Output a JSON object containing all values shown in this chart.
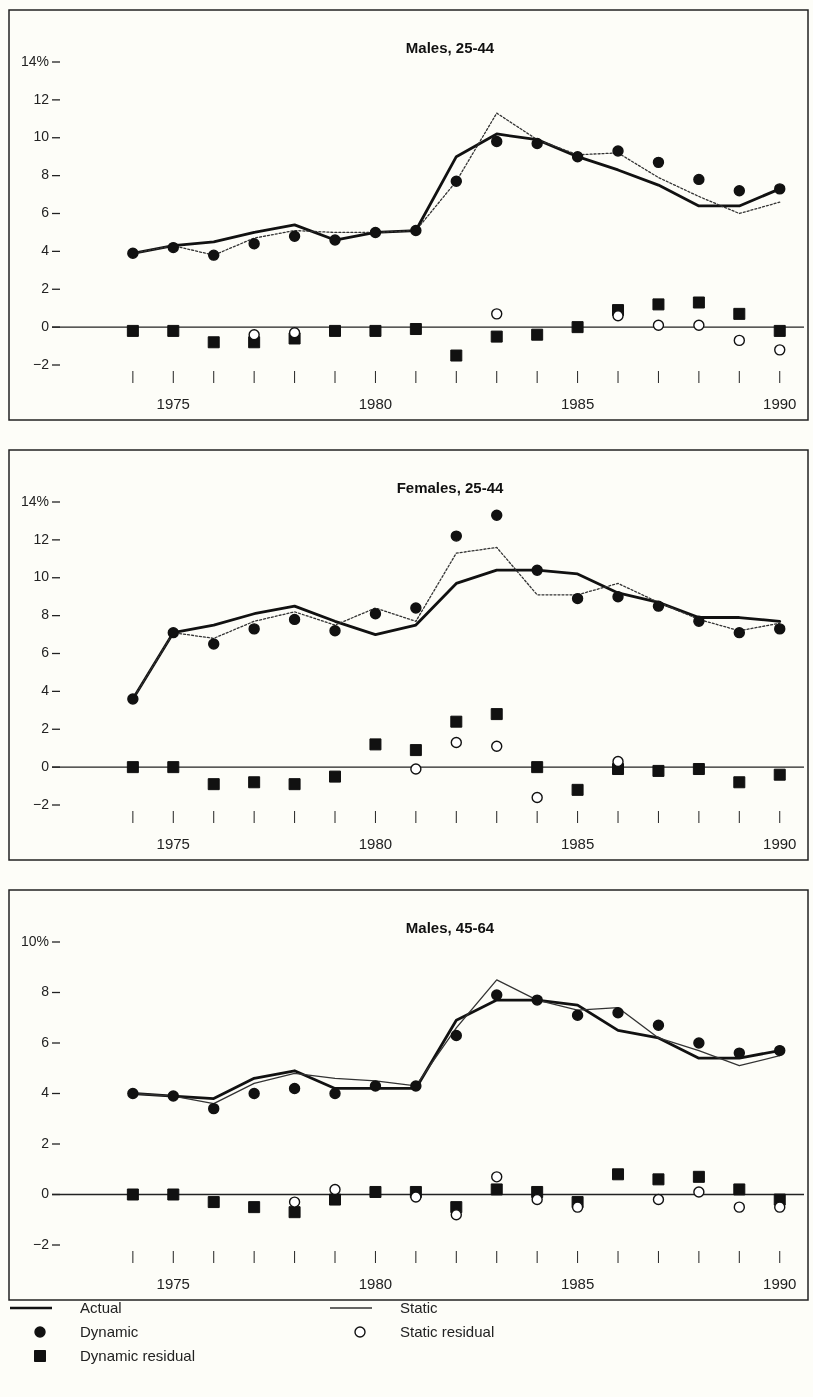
{
  "chart_data": [
    {
      "type": "line",
      "title": "Males, 25-44",
      "x": [
        1974,
        1975,
        1976,
        1977,
        1978,
        1979,
        1980,
        1981,
        1982,
        1983,
        1984,
        1985,
        1986,
        1987,
        1988,
        1989,
        1990
      ],
      "xlim": [
        1972,
        1990.6
      ],
      "xticks": [
        {
          "value": 1974,
          "label": null
        },
        1975,
        {
          "value": 1976,
          "label": null
        },
        {
          "value": 1977,
          "label": null
        },
        {
          "value": 1978,
          "label": null
        },
        {
          "value": 1979,
          "label": null
        },
        1980,
        {
          "value": 1981,
          "label": null
        },
        {
          "value": 1982,
          "label": null
        },
        {
          "value": 1983,
          "label": null
        },
        {
          "value": 1984,
          "label": null
        },
        1985,
        {
          "value": 1986,
          "label": null
        },
        {
          "value": 1987,
          "label": null
        },
        {
          "value": 1988,
          "label": null
        },
        {
          "value": 1989,
          "label": null
        },
        1990
      ],
      "ylim": [
        -2,
        14
      ],
      "yticks": [
        {
          "value": 14,
          "label": "14%"
        },
        12,
        10,
        8,
        6,
        4,
        2,
        0,
        {
          "value": -2,
          "label": "−2"
        }
      ],
      "ref_lines": [
        {
          "axis": "y",
          "value": 0
        }
      ],
      "series": [
        {
          "type": "line",
          "line_style": "solid",
          "color": "#111111",
          "values": [
            3.9,
            4.3,
            4.5,
            5.0,
            5.4,
            4.6,
            5.0,
            5.1,
            9.0,
            10.2,
            9.9,
            9.0,
            8.3,
            7.5,
            6.4,
            6.4,
            7.3
          ]
        },
        {
          "type": "line",
          "line_style": "dotted",
          "color": "#333333",
          "values": [
            3.9,
            4.3,
            3.8,
            4.7,
            5.1,
            5.0,
            5.0,
            5.1,
            7.7,
            11.3,
            9.9,
            9.1,
            9.2,
            7.9,
            6.9,
            6.0,
            6.6
          ]
        },
        {
          "type": "scatter",
          "marker": "circle",
          "color": "#111111",
          "values": [
            3.9,
            4.2,
            3.8,
            4.4,
            4.8,
            4.6,
            5.0,
            5.1,
            7.7,
            9.8,
            9.7,
            9.0,
            9.3,
            8.7,
            7.8,
            7.2,
            7.3
          ]
        },
        {
          "type": "scatter",
          "marker": "circle",
          "color": "#ffffff",
          "values": [
            null,
            null,
            null,
            -0.4,
            -0.3,
            null,
            null,
            null,
            null,
            0.7,
            null,
            null,
            0.6,
            0.1,
            0.1,
            -0.7,
            -1.2
          ]
        },
        {
          "type": "scatter",
          "marker": "square",
          "color": "#111111",
          "values": [
            -0.2,
            -0.2,
            -0.8,
            -0.8,
            -0.6,
            -0.2,
            -0.2,
            -0.1,
            -1.5,
            -0.5,
            -0.4,
            0.0,
            0.9,
            1.2,
            1.3,
            0.7,
            -0.2
          ]
        }
      ]
    },
    {
      "type": "line",
      "title": "Females, 25-44",
      "x": [
        1974,
        1975,
        1976,
        1977,
        1978,
        1979,
        1980,
        1981,
        1982,
        1983,
        1984,
        1985,
        1986,
        1987,
        1988,
        1989,
        1990
      ],
      "xlim": [
        1972,
        1990.6
      ],
      "xticks": [
        {
          "value": 1974,
          "label": null
        },
        1975,
        {
          "value": 1976,
          "label": null
        },
        {
          "value": 1977,
          "label": null
        },
        {
          "value": 1978,
          "label": null
        },
        {
          "value": 1979,
          "label": null
        },
        1980,
        {
          "value": 1981,
          "label": null
        },
        {
          "value": 1982,
          "label": null
        },
        {
          "value": 1983,
          "label": null
        },
        {
          "value": 1984,
          "label": null
        },
        1985,
        {
          "value": 1986,
          "label": null
        },
        {
          "value": 1987,
          "label": null
        },
        {
          "value": 1988,
          "label": null
        },
        {
          "value": 1989,
          "label": null
        },
        1990
      ],
      "ylim": [
        -2,
        14
      ],
      "yticks": [
        {
          "value": 14,
          "label": "14%"
        },
        12,
        10,
        8,
        6,
        4,
        2,
        0,
        {
          "value": -2,
          "label": "−2"
        }
      ],
      "ref_lines": [
        {
          "axis": "y",
          "value": 0
        }
      ],
      "series": [
        {
          "type": "line",
          "line_style": "solid",
          "color": "#111111",
          "values": [
            3.6,
            7.1,
            7.5,
            8.1,
            8.5,
            7.7,
            7.0,
            7.5,
            9.7,
            10.4,
            10.4,
            10.2,
            9.2,
            8.7,
            7.9,
            7.9,
            7.7
          ]
        },
        {
          "type": "line",
          "line_style": "dotted",
          "color": "#333333",
          "values": [
            3.6,
            7.1,
            6.8,
            7.7,
            8.2,
            7.5,
            8.4,
            7.7,
            11.3,
            11.6,
            9.1,
            9.1,
            9.7,
            8.7,
            7.8,
            7.2,
            7.6
          ]
        },
        {
          "type": "scatter",
          "marker": "circle",
          "color": "#111111",
          "values": [
            3.6,
            7.1,
            6.5,
            7.3,
            7.8,
            7.2,
            8.1,
            8.4,
            12.2,
            13.3,
            10.4,
            8.9,
            9.0,
            8.5,
            7.7,
            7.1,
            7.3
          ]
        },
        {
          "type": "scatter",
          "marker": "circle",
          "color": "#ffffff",
          "values": [
            null,
            null,
            null,
            null,
            null,
            null,
            null,
            -0.1,
            1.3,
            1.1,
            -1.6,
            null,
            0.3,
            null,
            null,
            null,
            null
          ]
        },
        {
          "type": "scatter",
          "marker": "square",
          "color": "#111111",
          "values": [
            0,
            0,
            -0.9,
            -0.8,
            -0.9,
            -0.5,
            1.2,
            0.9,
            2.4,
            2.8,
            0,
            -1.2,
            -0.1,
            -0.2,
            -0.1,
            -0.8,
            -0.4
          ]
        }
      ]
    },
    {
      "type": "line",
      "title": "Males, 45-64",
      "x": [
        1974,
        1975,
        1976,
        1977,
        1978,
        1979,
        1980,
        1981,
        1982,
        1983,
        1984,
        1985,
        1986,
        1987,
        1988,
        1989,
        1990
      ],
      "xlim": [
        1972,
        1990.6
      ],
      "xticks": [
        {
          "value": 1974,
          "label": null
        },
        1975,
        {
          "value": 1976,
          "label": null
        },
        {
          "value": 1977,
          "label": null
        },
        {
          "value": 1978,
          "label": null
        },
        {
          "value": 1979,
          "label": null
        },
        1980,
        {
          "value": 1981,
          "label": null
        },
        {
          "value": 1982,
          "label": null
        },
        {
          "value": 1983,
          "label": null
        },
        {
          "value": 1984,
          "label": null
        },
        1985,
        {
          "value": 1986,
          "label": null
        },
        {
          "value": 1987,
          "label": null
        },
        {
          "value": 1988,
          "label": null
        },
        {
          "value": 1989,
          "label": null
        },
        1990
      ],
      "ylim": [
        -2,
        10
      ],
      "yticks": [
        {
          "value": 10,
          "label": "10%"
        },
        8,
        6,
        4,
        2,
        0,
        {
          "value": -2,
          "label": "−2"
        }
      ],
      "ref_lines": [
        {
          "axis": "y",
          "value": 0
        }
      ],
      "legend": "bottom",
      "series": [
        {
          "name": "Actual",
          "type": "line",
          "line_style": "solid",
          "color": "#111111",
          "values": [
            4.0,
            3.9,
            3.8,
            4.6,
            4.9,
            4.2,
            4.2,
            4.2,
            6.9,
            7.7,
            7.7,
            7.5,
            6.5,
            6.2,
            5.4,
            5.4,
            5.7
          ]
        },
        {
          "name": "Static",
          "type": "line",
          "line_style": "solid",
          "color": "#333333",
          "values": [
            4.0,
            3.9,
            3.6,
            4.4,
            4.8,
            4.6,
            4.5,
            4.3,
            6.6,
            8.5,
            7.7,
            7.3,
            7.4,
            6.2,
            5.7,
            5.1,
            5.5
          ]
        },
        {
          "name": "Dynamic",
          "type": "scatter",
          "marker": "circle",
          "color": "#111111",
          "values": [
            4.0,
            3.9,
            3.4,
            4.0,
            4.2,
            4.0,
            4.3,
            4.3,
            6.3,
            7.9,
            7.7,
            7.1,
            7.2,
            6.7,
            6.0,
            5.6,
            5.7
          ]
        },
        {
          "name": "Static residual",
          "type": "scatter",
          "marker": "circle",
          "color": "#ffffff",
          "values": [
            null,
            null,
            null,
            null,
            -0.3,
            0.2,
            null,
            -0.1,
            -0.8,
            0.7,
            -0.2,
            -0.5,
            null,
            -0.2,
            0.1,
            -0.5,
            -0.5
          ]
        },
        {
          "name": "Dynamic residual",
          "type": "scatter",
          "marker": "square",
          "color": "#111111",
          "values": [
            0,
            0,
            -0.3,
            -0.5,
            -0.7,
            -0.2,
            0.1,
            0.1,
            -0.5,
            0.2,
            0.1,
            -0.3,
            0.8,
            0.6,
            0.7,
            0.2,
            -0.2
          ]
        }
      ]
    }
  ]
}
